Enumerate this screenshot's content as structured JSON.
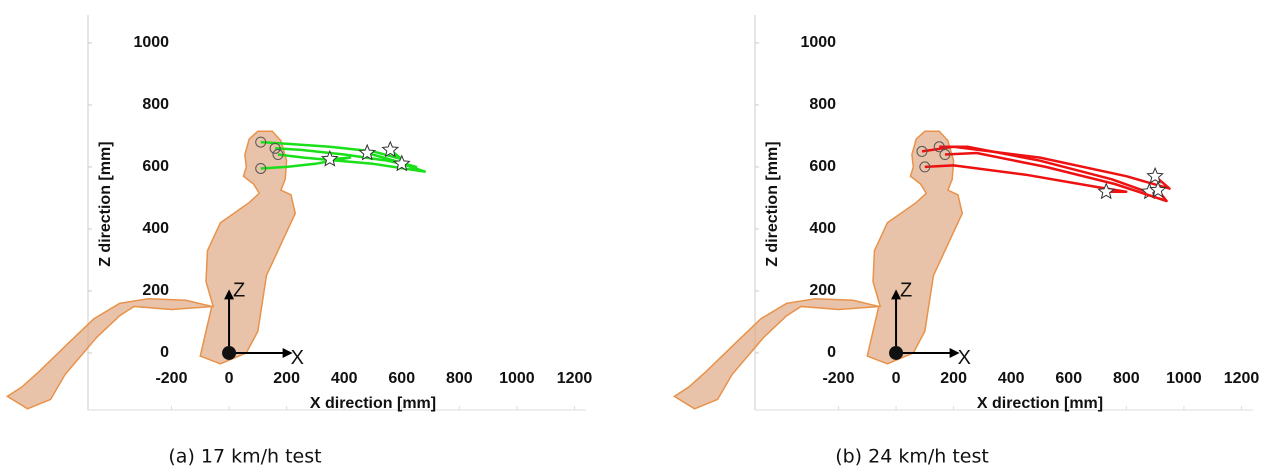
{
  "chart_data": [
    {
      "type": "line",
      "xlabel": "X direction [mm]",
      "ylabel": "Z direction [mm]",
      "caption": "(a) 17 km/h test",
      "xlim": [
        -490,
        1240
      ],
      "ylim": [
        -184,
        1090
      ],
      "xticks": [
        -200,
        0,
        200,
        400,
        600,
        800,
        1000,
        1200
      ],
      "yticks": [
        0,
        200,
        400,
        600,
        800,
        1000
      ],
      "annotations": [
        "X",
        "Z"
      ],
      "series": [
        {
          "color": "#19e019",
          "x": [
            110,
            200,
            350,
            500,
            600,
            560
          ],
          "values": [
            680,
            675,
            665,
            650,
            625,
            655
          ]
        },
        {
          "color": "#19e019",
          "x": [
            160,
            250,
            400,
            550,
            650,
            480
          ],
          "values": [
            660,
            655,
            640,
            620,
            600,
            645
          ]
        },
        {
          "color": "#19e019",
          "x": [
            170,
            260,
            380,
            500,
            680,
            600
          ],
          "values": [
            640,
            630,
            620,
            610,
            585,
            610
          ]
        },
        {
          "color": "#19e019",
          "x": [
            110,
            200,
            300,
            360,
            420,
            350
          ],
          "values": [
            595,
            600,
            610,
            620,
            630,
            625
          ]
        }
      ]
    },
    {
      "type": "line",
      "xlabel": "X direction [mm]",
      "ylabel": "Z direction [mm]",
      "caption": "(b) 24 km/h test",
      "xlim": [
        -490,
        1240
      ],
      "ylim": [
        -184,
        1090
      ],
      "xticks": [
        -200,
        0,
        200,
        400,
        600,
        800,
        1000,
        1200
      ],
      "yticks": [
        0,
        200,
        400,
        600,
        800,
        1000
      ],
      "annotations": [
        "X",
        "Z"
      ],
      "series": [
        {
          "color": "#ee1111",
          "x": [
            90,
            200,
            500,
            800,
            950,
            900
          ],
          "values": [
            650,
            665,
            630,
            570,
            530,
            570
          ]
        },
        {
          "color": "#ee1111",
          "x": [
            150,
            250,
            500,
            750,
            900,
            880
          ],
          "values": [
            665,
            665,
            620,
            560,
            510,
            520
          ]
        },
        {
          "color": "#ee1111",
          "x": [
            170,
            280,
            520,
            760,
            940,
            910
          ],
          "values": [
            640,
            645,
            600,
            545,
            490,
            525
          ]
        },
        {
          "color": "#ee1111",
          "x": [
            100,
            200,
            450,
            700,
            800,
            730
          ],
          "values": [
            600,
            605,
            575,
            535,
            520,
            520
          ]
        }
      ]
    }
  ]
}
